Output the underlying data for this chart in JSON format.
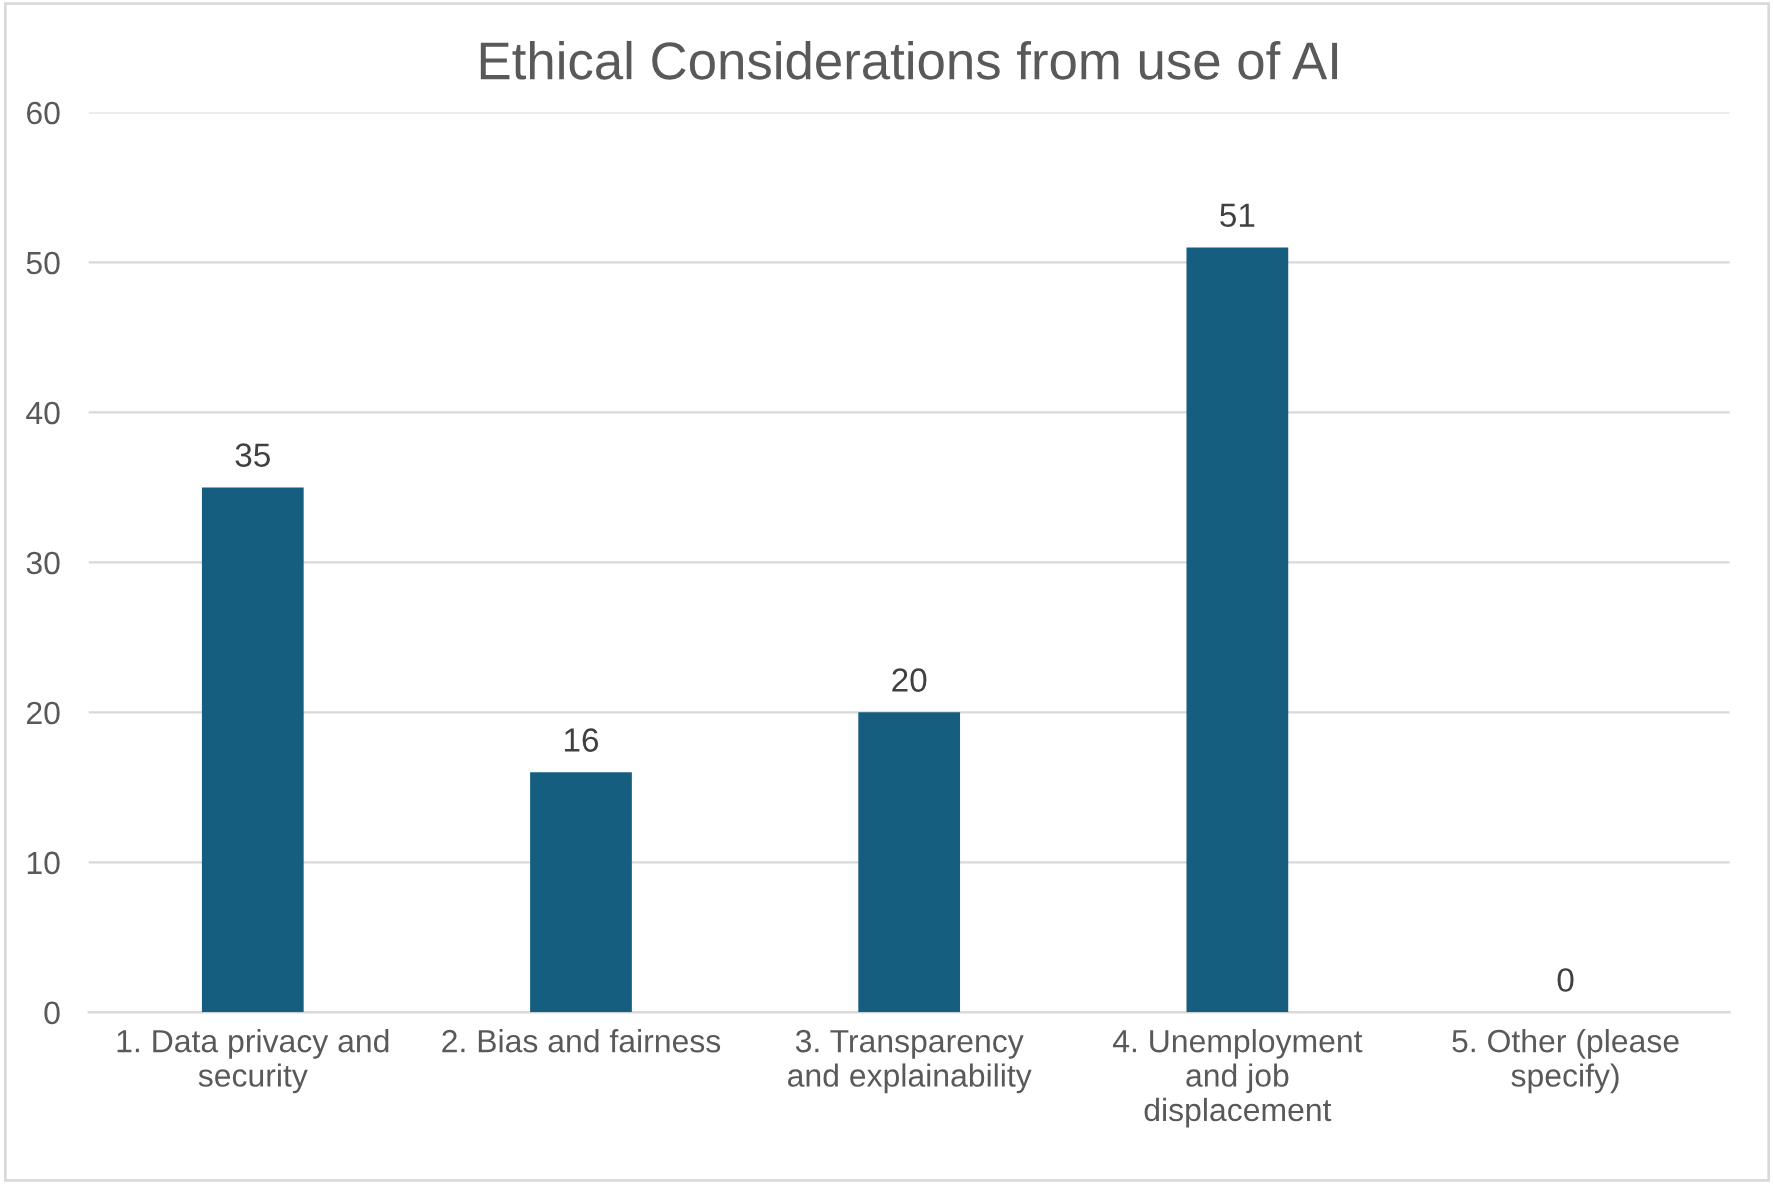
{
  "chart_data": {
    "type": "bar",
    "title": "Ethical Considerations from use of AI",
    "categories": [
      "1. Data privacy and\nsecurity",
      "2. Bias and fairness",
      "3. Transparency\nand explainability",
      "4. Unemployment\nand job\ndisplacement",
      "5. Other (please\nspecify)"
    ],
    "values": [
      35,
      16,
      20,
      51,
      0
    ],
    "color": "#155e80",
    "ylim": [
      0,
      60
    ],
    "yticks": [
      0,
      10,
      20,
      30,
      40,
      50,
      60
    ],
    "grid": "y",
    "data_labels": true
  }
}
